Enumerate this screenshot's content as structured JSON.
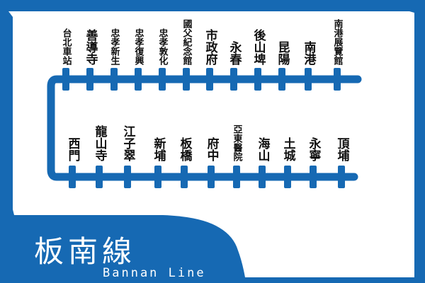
{
  "map": {
    "title": "板南線",
    "subtitle": "Bannan Line",
    "colors": {
      "line": "#1669b3",
      "background": "#ffffff",
      "text": "#111111",
      "label_text": "#ffffff"
    }
  },
  "top_stations": [
    "台北車站",
    "善導寺",
    "忠孝新生",
    "忠孝復興",
    "忠孝敦化",
    "國父紀念館",
    "市政府",
    "永春",
    "後山埤",
    "昆陽",
    "南港",
    "南港展覽館"
  ],
  "bottom_stations": [
    "西門",
    "龍山寺",
    "江子翠",
    "新埔",
    "板橋",
    "府中",
    "亞東醫院",
    "海山",
    "土城",
    "永寧",
    "頂埔"
  ]
}
